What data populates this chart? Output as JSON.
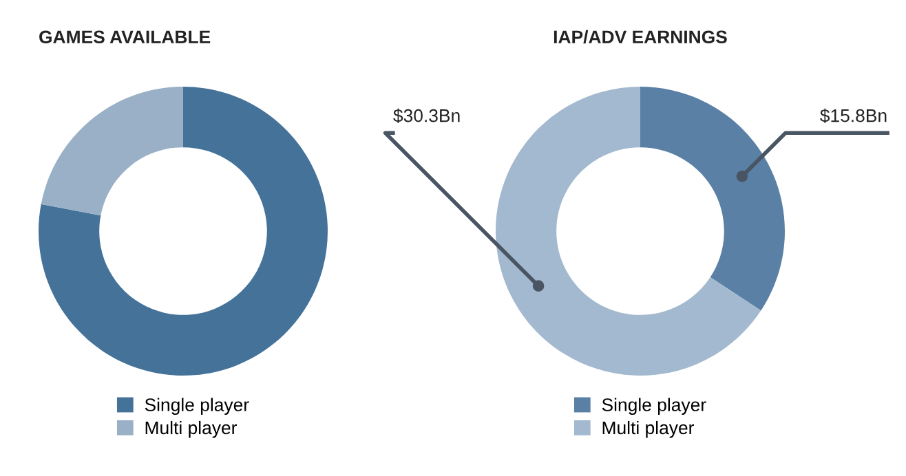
{
  "chart_data": [
    {
      "type": "donut",
      "title": "GAMES AVAILABLE",
      "categories": [
        "Single player",
        "Multi player"
      ],
      "values": [
        78,
        22
      ],
      "colors": [
        "#457299",
        "#9ab0c7"
      ],
      "legend": "bottom"
    },
    {
      "type": "donut",
      "title": "IAP/ADV EARNINGS",
      "categories": [
        "Single player",
        "Multi player"
      ],
      "values": [
        15.8,
        30.3
      ],
      "colors": [
        "#5a80a6",
        "#a3b9cf"
      ],
      "value_labels": [
        "$15.8Bn",
        "$30.3Bn"
      ],
      "legend": "bottom"
    }
  ]
}
